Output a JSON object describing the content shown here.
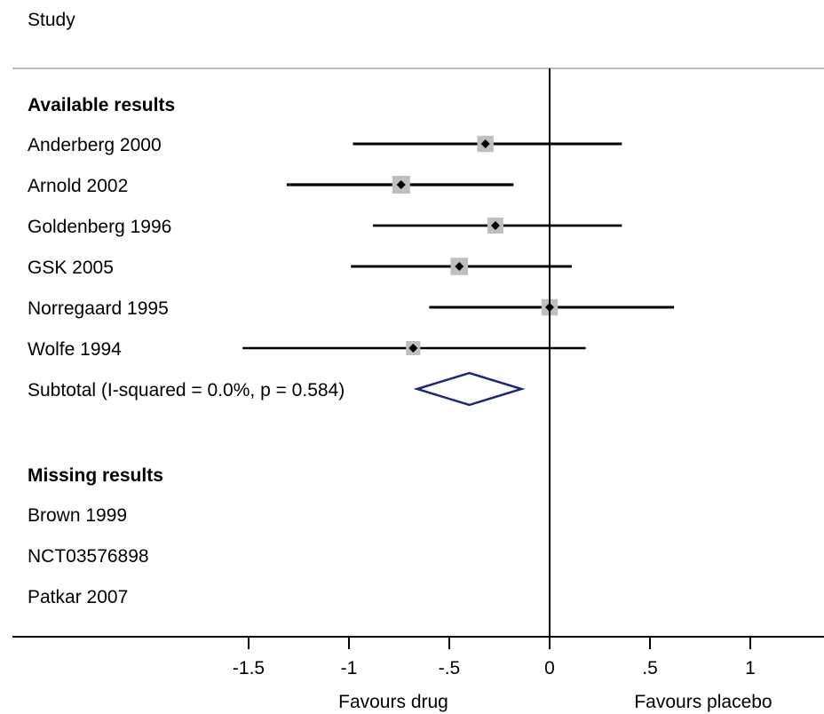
{
  "header": {
    "study_label": "Study"
  },
  "chart_data": {
    "type": "forest",
    "xlabels": {
      "left": "Favours drug",
      "right": "Favours placebo"
    },
    "xticks": [
      -1.5,
      -1,
      -0.5,
      0,
      0.5,
      1
    ],
    "xtick_labels": [
      "-1.5",
      "-1",
      "-.5",
      "0",
      ".5",
      "1"
    ],
    "xlim": [
      -2.7,
      1.36
    ],
    "null_line": 0,
    "groups": [
      {
        "heading": "Available results",
        "studies": [
          {
            "name": "Anderberg 2000",
            "estimate": -0.32,
            "lower": -0.98,
            "upper": 0.36,
            "weight": 0.22
          },
          {
            "name": "Arnold 2002",
            "estimate": -0.74,
            "lower": -1.31,
            "upper": -0.18,
            "weight": 0.3
          },
          {
            "name": "Goldenberg 1996",
            "estimate": -0.27,
            "lower": -0.88,
            "upper": 0.36,
            "weight": 0.2
          },
          {
            "name": "GSK 2005",
            "estimate": -0.45,
            "lower": -0.99,
            "upper": 0.11,
            "weight": 0.28
          },
          {
            "name": "Norregaard 1995",
            "estimate": 0.0,
            "lower": -0.6,
            "upper": 0.62,
            "weight": 0.22
          },
          {
            "name": "Wolfe 1994",
            "estimate": -0.68,
            "lower": -1.53,
            "upper": 0.18,
            "weight": 0.1
          }
        ],
        "subtotal": {
          "label": "Subtotal  (I-squared = 0.0%, p = 0.584)",
          "estimate": -0.4,
          "lower": -0.66,
          "upper": -0.14
        }
      },
      {
        "heading": "Missing results",
        "studies": [
          {
            "name": "Brown 1999"
          },
          {
            "name": "NCT03576898"
          },
          {
            "name": "Patkar 2007"
          }
        ]
      }
    ],
    "colors": {
      "diamond": "#1f2a6e",
      "box": "#bfbfbf",
      "line": "#000000"
    }
  }
}
